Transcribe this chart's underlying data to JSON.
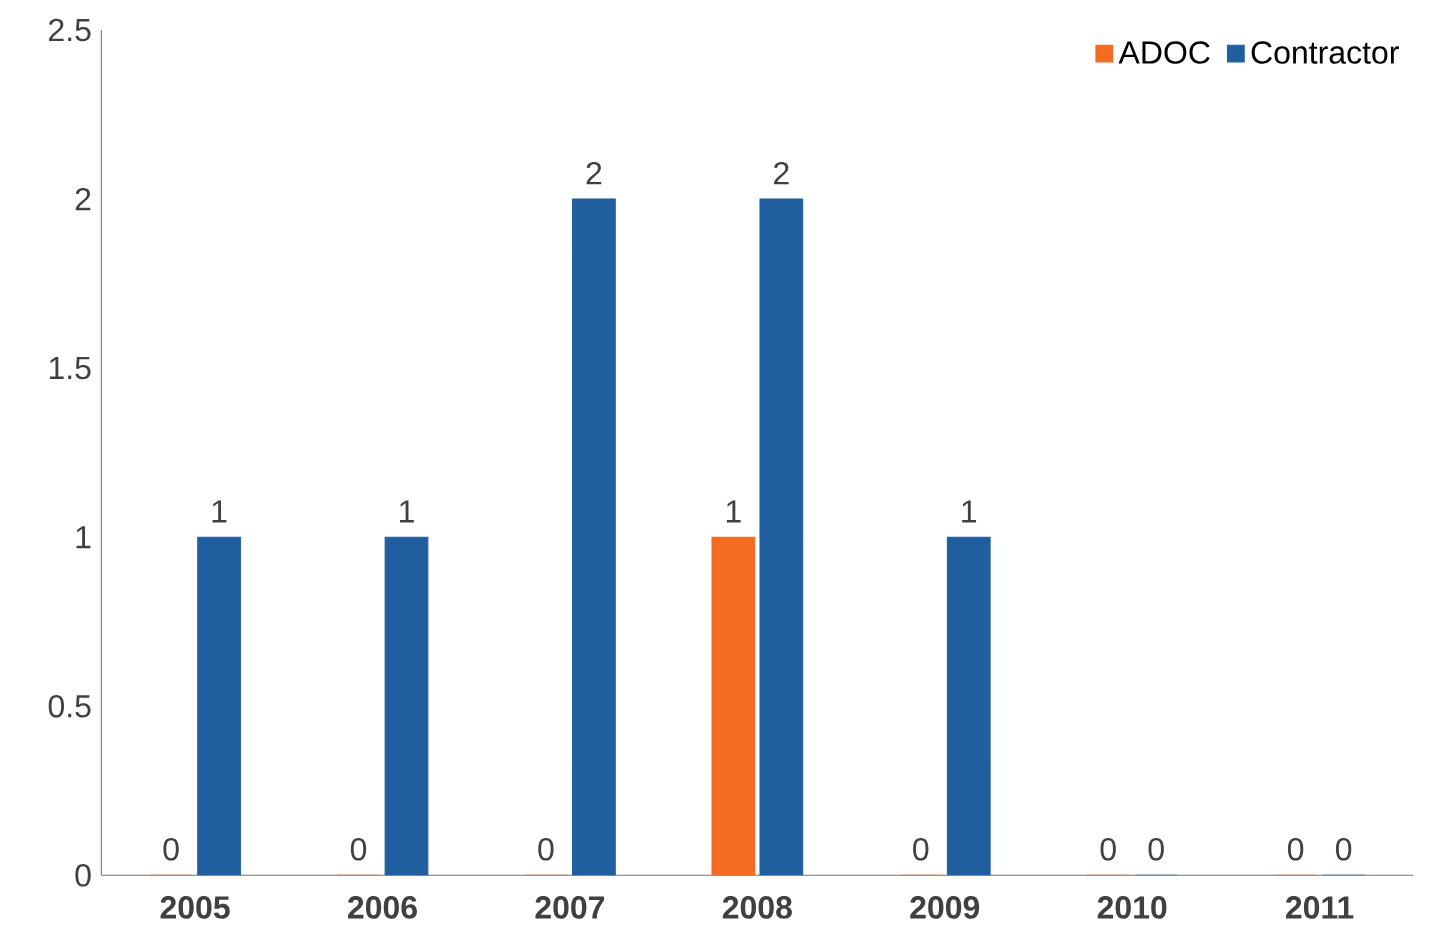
{
  "chart_data": {
    "type": "bar",
    "categories": [
      "2005",
      "2006",
      "2007",
      "2008",
      "2009",
      "2010",
      "2011"
    ],
    "series": [
      {
        "name": "ADOC",
        "color": "#f26b21",
        "values": [
          0,
          0,
          0,
          1,
          0,
          0,
          0
        ]
      },
      {
        "name": "Contractor",
        "color": "#1f5fa0",
        "values": [
          1,
          1,
          2,
          2,
          1,
          0,
          0
        ]
      }
    ],
    "ylim": [
      0,
      2.5
    ],
    "yticks": [
      0,
      0.5,
      1,
      1.5,
      2,
      2.5
    ],
    "data_labels": true,
    "legend": "top right",
    "grid": false
  }
}
